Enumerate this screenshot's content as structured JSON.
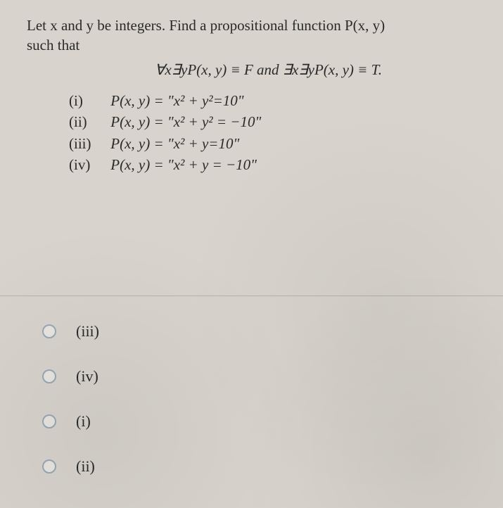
{
  "prompt_line1": "Let x and y be integers. Find a propositional function P(x, y)",
  "prompt_line2": "such that",
  "formula": "∀x∃yP(x, y) ≡ F and ∃x∃yP(x, y) ≡ T.",
  "options": [
    {
      "label": "(i)",
      "text": "P(x, y) = \"x² + y²=10\""
    },
    {
      "label": "(ii)",
      "text": "P(x, y) = \"x² + y² = −10\""
    },
    {
      "label": "(iii)",
      "text": "P(x, y) = \"x² + y=10\""
    },
    {
      "label": "(iv)",
      "text": "P(x, y) = \"x² + y = −10\""
    }
  ],
  "answers": [
    {
      "label": "(iii)"
    },
    {
      "label": "(iv)"
    },
    {
      "label": "(i)"
    },
    {
      "label": "(ii)"
    }
  ]
}
